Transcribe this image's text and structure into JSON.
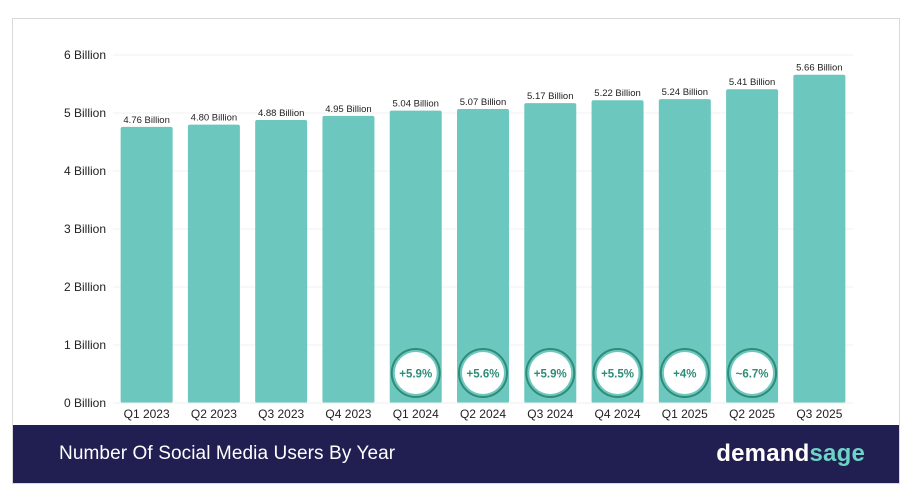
{
  "chart_data": {
    "type": "bar",
    "title": "Number Of Social Media Users By Year",
    "categories": [
      "Q1 2023",
      "Q2 2023",
      "Q3 2023",
      "Q4 2023",
      "Q1 2024",
      "Q2 2024",
      "Q3 2024",
      "Q4 2024",
      "Q1 2025",
      "Q2 2025",
      "Q3 2025"
    ],
    "values": [
      4.76,
      4.8,
      4.88,
      4.95,
      5.04,
      5.07,
      5.17,
      5.22,
      5.24,
      5.41,
      5.66
    ],
    "value_labels": [
      "4.76 Billion",
      "4.80 Billion",
      "4.88 Billion",
      "4.95 Billion",
      "5.04 Billion",
      "5.07 Billion",
      "5.17 Billion",
      "5.22 Billion",
      "5.24 Billion",
      "5.41 Billion",
      "5.66 Billion"
    ],
    "growth_badges": [
      "",
      "",
      "",
      "",
      "+5.9%",
      "+5.6%",
      "+5.9%",
      "+5.5%",
      "+4%",
      "~6.7%",
      ""
    ],
    "yticks": [
      0,
      1,
      2,
      3,
      4,
      5,
      6
    ],
    "ytick_labels": [
      "0 Billion",
      "1 Billion",
      "2 Billion",
      "3 Billion",
      "4 Billion",
      "5 Billion",
      "6 Billion"
    ],
    "ylim": [
      0,
      6
    ],
    "xlabel": "",
    "ylabel": "",
    "grid": true,
    "bar_color": "#6cc7be",
    "badge_border_color": "#2f8c79",
    "badge_text_color": "#2f8c79"
  },
  "footer": {
    "title": "Number Of Social Media Users By Year",
    "brand_part1": "demand",
    "brand_part2": "sage"
  },
  "colors": {
    "footer_bg": "#211e52",
    "brand_accent": "#6cd3c5"
  }
}
